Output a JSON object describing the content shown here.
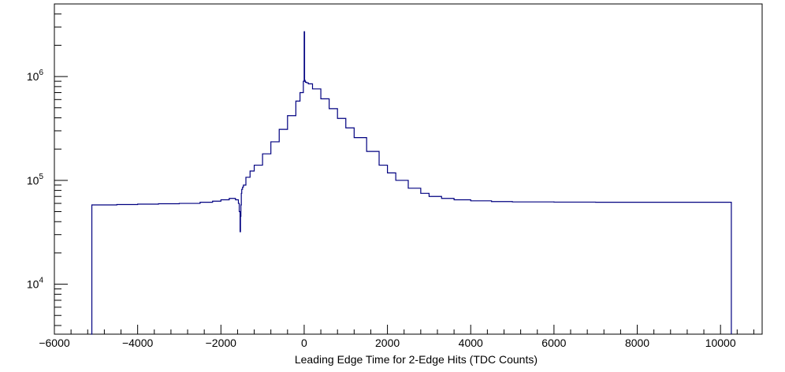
{
  "chart_data": {
    "type": "line",
    "style": "histogram-step",
    "title": "",
    "xlabel": "Leading Edge Time for 2-Edge Hits (TDC Counts)",
    "ylabel": "",
    "xlim": [
      -6000,
      11000
    ],
    "ylim": [
      3300,
      5000000
    ],
    "y_scale": "log",
    "grid": false,
    "legend": "none",
    "line_color": "#000080",
    "x_ticks": [
      -6000,
      -4000,
      -2000,
      0,
      2000,
      4000,
      6000,
      8000,
      10000
    ],
    "x_tick_labels": [
      "−6000",
      "−4000",
      "−2000",
      "0",
      "2000",
      "4000",
      "6000",
      "8000",
      "10000"
    ],
    "y_ticks": [
      10000,
      100000,
      1000000
    ],
    "y_tick_labels": [
      {
        "base": "10",
        "exp": "4"
      },
      {
        "base": "10",
        "exp": "5"
      },
      {
        "base": "10",
        "exp": "6"
      }
    ],
    "series": [
      {
        "x": [
          -5120,
          -5100,
          -4500,
          -4000,
          -3500,
          -3000,
          -2500,
          -2200,
          -2000,
          -1800,
          -1650,
          -1580,
          -1560,
          -1540,
          -1530,
          -1520,
          -1510,
          -1500,
          -1480,
          -1460,
          -1400,
          -1300,
          -1200,
          -1000,
          -800,
          -600,
          -400,
          -200,
          -100,
          -20,
          0,
          10,
          20,
          30,
          60,
          100,
          200,
          400,
          600,
          800,
          1000,
          1200,
          1500,
          1800,
          2000,
          2200,
          2500,
          2800,
          3000,
          3300,
          3600,
          4000,
          4500,
          5000,
          6000,
          7000,
          8000,
          9000,
          10000,
          10250,
          10260
        ],
        "y": [
          3300,
          58000,
          58500,
          59000,
          59500,
          60000,
          61500,
          63000,
          65000,
          67000,
          65000,
          60000,
          50000,
          32000,
          45000,
          58000,
          75000,
          82000,
          86000,
          90000,
          107000,
          123000,
          140000,
          180000,
          235000,
          310000,
          420000,
          580000,
          700000,
          900000,
          2700000,
          920000,
          900000,
          880000,
          870000,
          850000,
          760000,
          610000,
          490000,
          395000,
          320000,
          258000,
          190000,
          140000,
          118000,
          100000,
          84000,
          75000,
          70000,
          67000,
          65000,
          63500,
          62500,
          62000,
          61700,
          61500,
          61500,
          61500,
          61500,
          61500,
          3300
        ]
      }
    ]
  }
}
